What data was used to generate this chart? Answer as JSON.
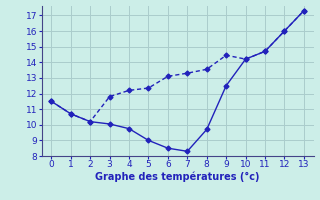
{
  "line1_x": [
    0,
    1,
    2,
    3,
    4,
    5,
    6,
    7,
    8,
    9,
    10,
    11,
    12,
    13
  ],
  "line1_y": [
    11.5,
    10.7,
    10.2,
    10.05,
    9.75,
    9.0,
    8.5,
    8.3,
    9.7,
    12.5,
    14.2,
    14.7,
    16.0,
    17.3
  ],
  "line2_x": [
    0,
    1,
    2,
    3,
    4,
    5,
    6,
    7,
    8,
    9,
    10,
    11,
    12,
    13
  ],
  "line2_y": [
    11.5,
    10.7,
    10.2,
    11.8,
    12.2,
    12.35,
    13.1,
    13.3,
    13.55,
    14.45,
    14.2,
    14.7,
    16.0,
    17.3
  ],
  "color": "#2222bb",
  "bg_color": "#cceee8",
  "grid_color": "#aacccc",
  "xlabel": "Graphe des températures (°c)",
  "xlim": [
    -0.5,
    13.5
  ],
  "ylim": [
    8,
    17.6
  ],
  "yticks": [
    8,
    9,
    10,
    11,
    12,
    13,
    14,
    15,
    16,
    17
  ],
  "xticks": [
    0,
    1,
    2,
    3,
    4,
    5,
    6,
    7,
    8,
    9,
    10,
    11,
    12,
    13
  ]
}
